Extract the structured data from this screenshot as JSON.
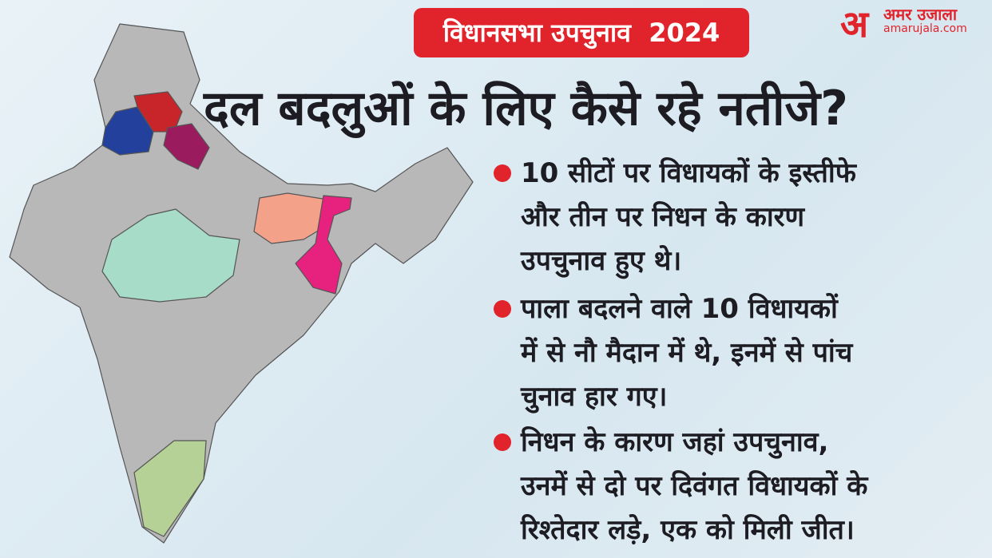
{
  "badge": "विधानसभा उपचुनाव  2024",
  "title": "दल बदलुओं के लिए कैसे रहे नतीजे?",
  "logo": {
    "mark": "अ",
    "name": "अमर उजाला",
    "site": "amarujala.com"
  },
  "bullets": [
    {
      "lines": [
        "10 सीटों पर विधायकों के इस्तीफे",
        "और तीन पर निधन के कारण",
        "उपचुनाव हुए थे।"
      ]
    },
    {
      "lines": [
        "पाला बदलने वाले 10 विधायकों",
        "में से नौ मैदान में थे, इनमें से पांच",
        "चुनाव हार गए।"
      ]
    },
    {
      "lines": [
        "निधन के कारण जहां उपचुनाव,",
        "उनमें से दो पर दिवंगत विधायकों के",
        "रिश्तेदार लड़े, एक को मिली जीत।"
      ]
    }
  ]
}
